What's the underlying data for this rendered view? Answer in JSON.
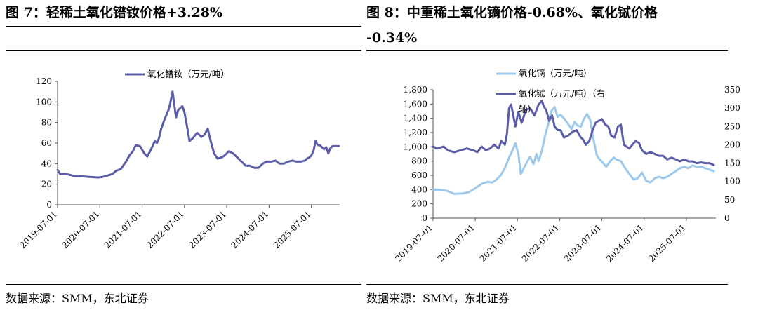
{
  "left": {
    "title": "图  7：轻稀土氧化镨钕价格+3.28%",
    "source": "数据来源：SMM，东北证券"
  },
  "right": {
    "title_line1": "图  8：中重稀土氧化镝价格-0.68%、氧化铽价格",
    "title_line2": "-0.34%",
    "source": "数据来源：SMM，东北证券"
  },
  "colors": {
    "prnd": "#5b5ea6",
    "dy": "#9ec9ea",
    "tb": "#5b5ea6"
  },
  "chart_data": [
    {
      "type": "line",
      "title": "",
      "xlabel": "",
      "ylabel": "",
      "ylim": [
        0,
        120
      ],
      "yticks": [
        0,
        20,
        40,
        60,
        80,
        100,
        120
      ],
      "xlim": [
        2019.5,
        2026.17
      ],
      "xticks": [
        {
          "value": 2019.5,
          "label": "2019-07-01"
        },
        {
          "value": 2020.5,
          "label": "2020-07-01"
        },
        {
          "value": 2021.5,
          "label": "2021-07-01"
        },
        {
          "value": 2022.5,
          "label": "2022-07-01"
        },
        {
          "value": 2023.5,
          "label": "2023-07-01"
        },
        {
          "value": 2024.5,
          "label": "2024-07-01"
        },
        {
          "value": 2025.5,
          "label": "2025-07-01"
        }
      ],
      "legend": "top-center",
      "series": [
        {
          "name": "氧化镨钕（万元/吨）",
          "axis": "left",
          "x": [
            2019.5,
            2019.56,
            2019.7,
            2019.9,
            2020.0,
            2020.15,
            2020.3,
            2020.45,
            2020.55,
            2020.65,
            2020.72,
            2020.8,
            2020.88,
            2020.95,
            2021.0,
            2021.05,
            2021.12,
            2021.2,
            2021.28,
            2021.35,
            2021.45,
            2021.55,
            2021.62,
            2021.7,
            2021.8,
            2021.85,
            2021.9,
            2021.95,
            2022.02,
            2022.08,
            2022.12,
            2022.16,
            2022.22,
            2022.3,
            2022.35,
            2022.45,
            2022.5,
            2022.58,
            2022.62,
            2022.7,
            2022.8,
            2022.9,
            2022.97,
            2023.05,
            2023.12,
            2023.2,
            2023.28,
            2023.38,
            2023.45,
            2023.55,
            2023.65,
            2023.75,
            2023.85,
            2023.95,
            2024.05,
            2024.15,
            2024.25,
            2024.35,
            2024.45,
            2024.55,
            2024.65,
            2024.75,
            2024.85,
            2024.95,
            2025.05,
            2025.15,
            2025.25,
            2025.35,
            2025.4,
            2025.45,
            2025.5,
            2025.55,
            2025.6,
            2025.65,
            2025.7,
            2025.75,
            2025.8,
            2025.85,
            2025.9,
            2025.95,
            2026.0,
            2026.05,
            2026.1,
            2026.15
          ],
          "y": [
            34,
            30,
            30,
            28,
            28,
            27.5,
            27,
            26.5,
            27,
            28,
            29,
            30,
            33,
            34,
            35,
            38,
            42,
            48,
            52,
            58,
            57,
            50,
            47,
            53,
            62,
            60,
            65,
            74,
            82,
            88,
            92,
            98,
            110,
            85,
            92,
            96,
            90,
            72,
            62,
            65,
            70,
            66,
            68,
            74,
            62,
            50,
            45,
            46,
            48,
            52,
            50,
            46,
            42,
            38,
            38,
            36,
            36,
            40,
            42,
            42,
            43,
            40,
            40,
            42,
            43,
            42,
            42,
            43,
            45,
            46,
            48,
            52,
            62,
            58,
            58,
            56,
            54,
            56,
            50,
            55,
            57,
            57,
            57,
            57
          ]
        }
      ]
    },
    {
      "type": "line",
      "title": "",
      "xlabel": "",
      "ylabel": "",
      "ylim": [
        0,
        1800
      ],
      "yticks": [
        0,
        200,
        400,
        600,
        800,
        1000,
        1200,
        1400,
        1600,
        1800
      ],
      "y2lim": [
        0,
        350
      ],
      "y2ticks": [
        0,
        50,
        100,
        150,
        200,
        250,
        300,
        350
      ],
      "xlim": [
        2019.5,
        2026.2
      ],
      "xticks": [
        {
          "value": 2019.5,
          "label": "2019-07-01"
        },
        {
          "value": 2020.5,
          "label": "2020-07-01"
        },
        {
          "value": 2021.5,
          "label": "2021-07-01"
        },
        {
          "value": 2022.5,
          "label": "2022-07-01"
        },
        {
          "value": 2023.5,
          "label": "2023-07-01"
        },
        {
          "value": 2024.5,
          "label": "2024-07-01"
        },
        {
          "value": 2025.5,
          "label": "2025-07-01"
        }
      ],
      "legend": "top-left",
      "series": [
        {
          "name": "氧化镝（万元/吨）",
          "axis": "left",
          "x": [
            2019.5,
            2019.7,
            2019.85,
            2020.0,
            2020.2,
            2020.35,
            2020.5,
            2020.65,
            2020.8,
            2020.9,
            2021.0,
            2021.1,
            2021.2,
            2021.3,
            2021.38,
            2021.45,
            2021.52,
            2021.58,
            2021.65,
            2021.72,
            2021.8,
            2021.88,
            2021.95,
            2022.0,
            2022.08,
            2022.15,
            2022.22,
            2022.3,
            2022.38,
            2022.45,
            2022.52,
            2022.6,
            2022.7,
            2022.78,
            2022.85,
            2022.92,
            2023.0,
            2023.08,
            2023.15,
            2023.22,
            2023.3,
            2023.38,
            2023.45,
            2023.52,
            2023.6,
            2023.7,
            2023.78,
            2023.85,
            2023.95,
            2024.05,
            2024.15,
            2024.25,
            2024.35,
            2024.45,
            2024.55,
            2024.65,
            2024.75,
            2024.85,
            2024.95,
            2025.05,
            2025.15,
            2025.25,
            2025.35,
            2025.45,
            2025.55,
            2025.65,
            2025.75,
            2025.85,
            2025.95,
            2026.05,
            2026.15
          ],
          "y": [
            400,
            395,
            380,
            340,
            345,
            365,
            420,
            480,
            510,
            500,
            540,
            600,
            700,
            850,
            950,
            1050,
            900,
            620,
            700,
            780,
            860,
            760,
            900,
            800,
            950,
            1150,
            1300,
            1500,
            1560,
            1420,
            1450,
            1400,
            1320,
            1250,
            1350,
            1300,
            1280,
            1400,
            1460,
            1380,
            1100,
            880,
            820,
            780,
            720,
            800,
            850,
            820,
            800,
            700,
            620,
            540,
            560,
            640,
            520,
            500,
            560,
            580,
            560,
            580,
            620,
            660,
            700,
            720,
            700,
            740,
            720,
            720,
            700,
            680,
            660
          ]
        },
        {
          "name": "氧化铽（万元/吨）（右轴）",
          "axis": "right",
          "x": [
            2019.5,
            2019.6,
            2019.75,
            2019.85,
            2020.0,
            2020.15,
            2020.3,
            2020.45,
            2020.55,
            2020.65,
            2020.75,
            2020.85,
            2020.95,
            2021.05,
            2021.12,
            2021.2,
            2021.25,
            2021.3,
            2021.35,
            2021.4,
            2021.45,
            2021.52,
            2021.6,
            2021.7,
            2021.8,
            2021.9,
            2022.0,
            2022.08,
            2022.12,
            2022.18,
            2022.25,
            2022.32,
            2022.38,
            2022.45,
            2022.52,
            2022.6,
            2022.7,
            2022.8,
            2022.9,
            2023.0,
            2023.05,
            2023.12,
            2023.2,
            2023.28,
            2023.35,
            2023.42,
            2023.5,
            2023.58,
            2023.65,
            2023.72,
            2023.8,
            2023.88,
            2023.95,
            2024.02,
            2024.08,
            2024.15,
            2024.22,
            2024.3,
            2024.38,
            2024.45,
            2024.55,
            2024.65,
            2024.75,
            2024.85,
            2024.95,
            2025.05,
            2025.15,
            2025.25,
            2025.35,
            2025.45,
            2025.55,
            2025.65,
            2025.75,
            2025.85,
            2025.95,
            2026.05,
            2026.15
          ],
          "y": [
            195,
            190,
            195,
            185,
            180,
            185,
            190,
            185,
            180,
            195,
            185,
            190,
            200,
            190,
            210,
            200,
            230,
            300,
            310,
            280,
            250,
            290,
            260,
            295,
            300,
            280,
            310,
            320,
            305,
            295,
            265,
            280,
            250,
            240,
            240,
            220,
            225,
            235,
            240,
            220,
            215,
            200,
            210,
            240,
            260,
            265,
            270,
            255,
            250,
            225,
            220,
            250,
            255,
            200,
            195,
            190,
            200,
            210,
            205,
            185,
            175,
            180,
            175,
            170,
            170,
            160,
            165,
            160,
            155,
            160,
            155,
            155,
            150,
            152,
            150,
            150,
            145
          ]
        }
      ]
    }
  ]
}
